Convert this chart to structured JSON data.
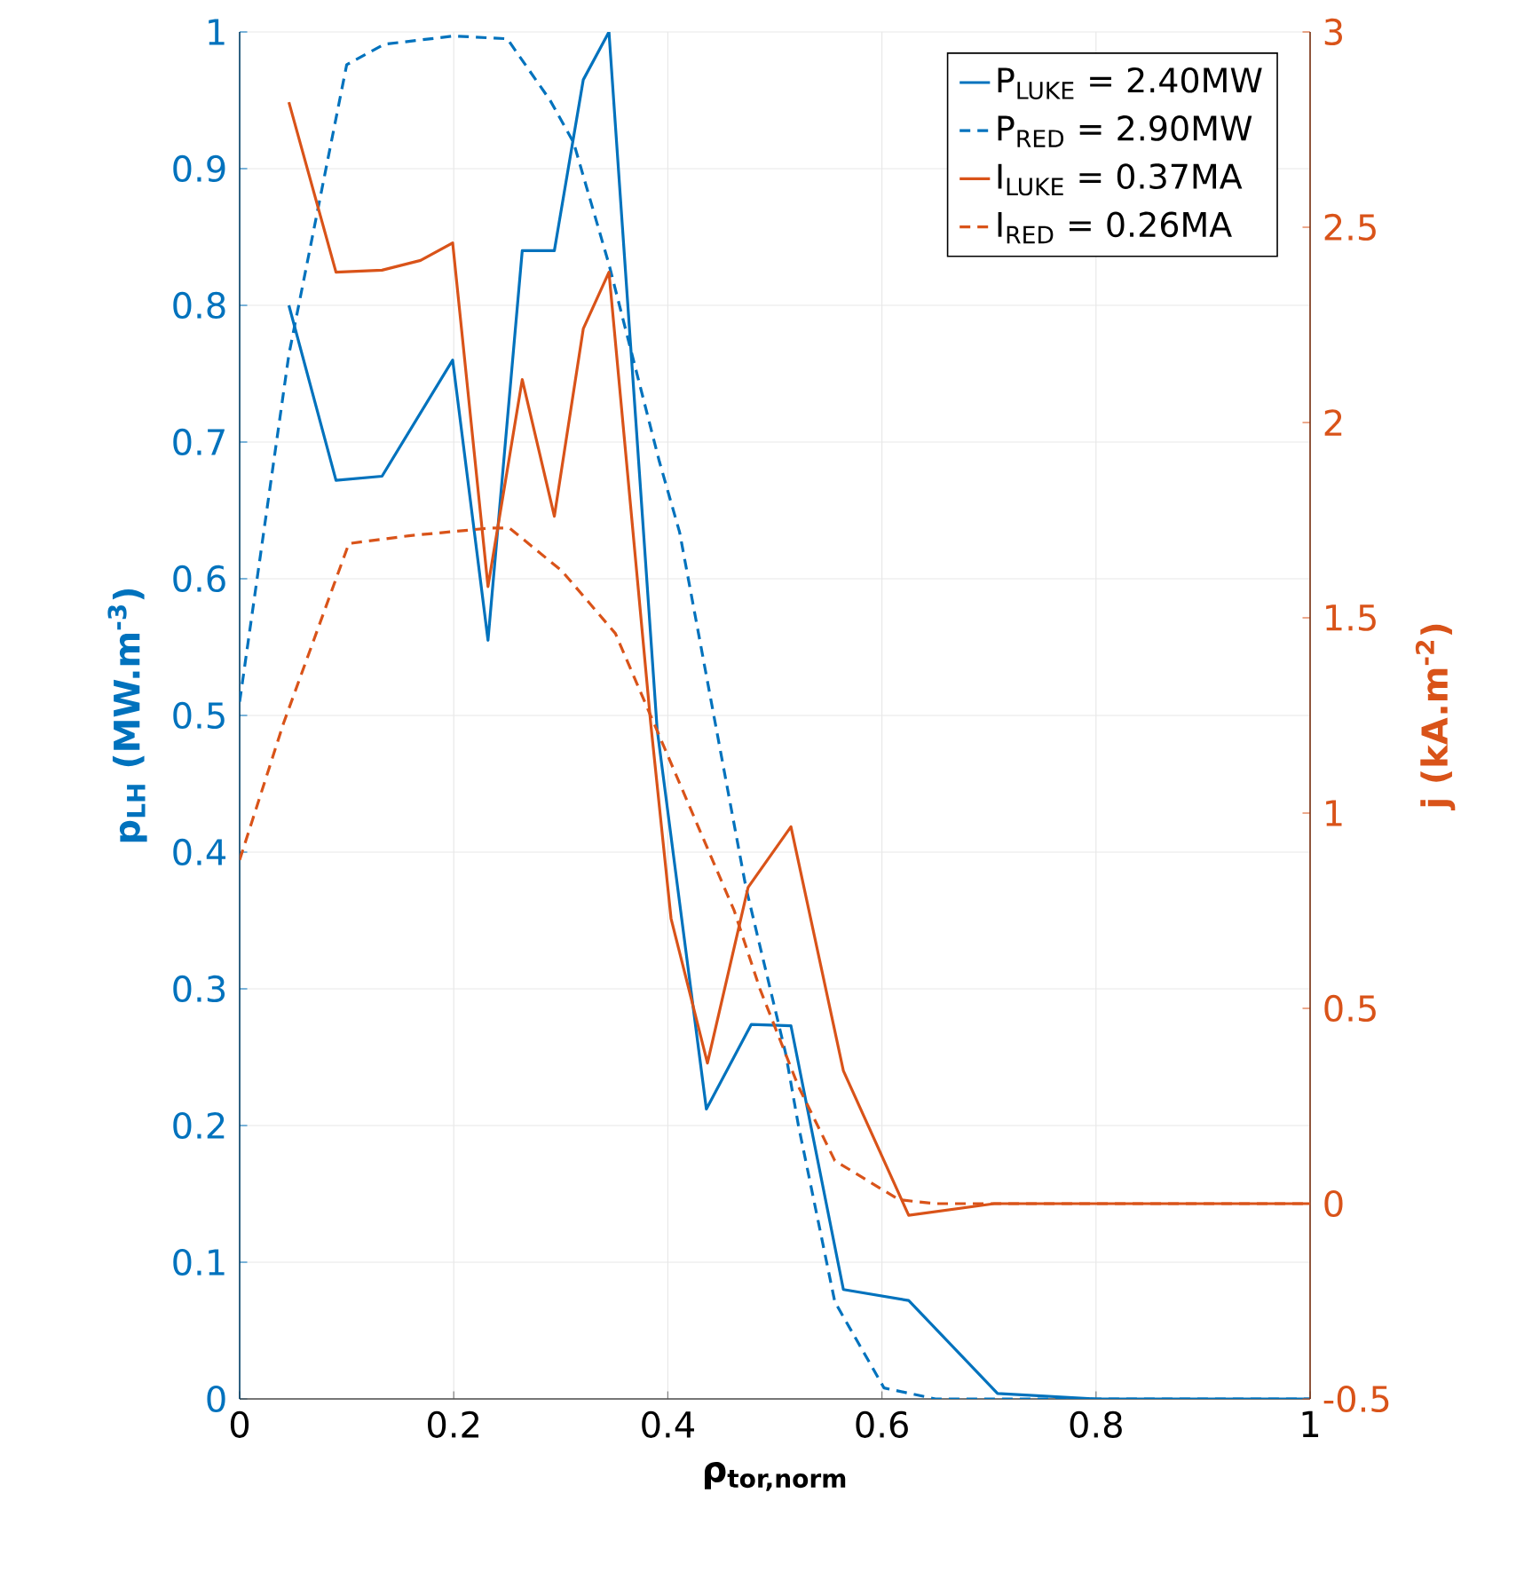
{
  "chart_data": {
    "type": "line",
    "xlabel": "ρ$_{tor,norm}$",
    "ylabel": "p$_{LH}$ (MW.m$^{-3}$)",
    "y2label": "j (kA.m$^{-2}$)",
    "xlim": [
      0,
      1
    ],
    "xticks": [
      0,
      0.2,
      0.4,
      0.6,
      0.8,
      1
    ],
    "ylim": [
      0,
      1
    ],
    "yticks": [
      0,
      0.1,
      0.2,
      0.3,
      0.4,
      0.5,
      0.6,
      0.7,
      0.8,
      0.9,
      1
    ],
    "y2lim": [
      -0.5,
      3
    ],
    "y2ticks": [
      -0.5,
      0,
      0.5,
      1,
      1.5,
      2,
      2.5,
      3
    ],
    "grid": true,
    "legend": "top right",
    "series": [
      {
        "name": "P$_{LUKE}$ = 2.40MW",
        "color": "#0072bd",
        "line_style": "solid",
        "x": [
          0.046,
          0.09,
          0.133,
          0.199,
          0.232,
          0.264,
          0.294,
          0.321,
          0.345,
          0.39,
          0.436,
          0.478,
          0.515,
          0.564,
          0.625,
          0.708,
          0.8,
          1.0
        ],
        "values": [
          0.8,
          0.672,
          0.675,
          0.76,
          0.555,
          0.84,
          0.84,
          0.965,
          1.0,
          0.49,
          0.212,
          0.274,
          0.273,
          0.08,
          0.072,
          0.004,
          0.0,
          0.0
        ]
      },
      {
        "name": "P$_{RED}$ = 2.90MW",
        "color": "#0072bd",
        "line_style": "dashed",
        "x": [
          0,
          0.046,
          0.1,
          0.135,
          0.2,
          0.25,
          0.29,
          0.312,
          0.345,
          0.392,
          0.411,
          0.473,
          0.51,
          0.522,
          0.556,
          0.602,
          0.65,
          1.0
        ],
        "values": [
          0.51,
          0.764,
          0.976,
          0.991,
          0.997,
          0.995,
          0.95,
          0.919,
          0.83,
          0.686,
          0.634,
          0.374,
          0.253,
          0.2,
          0.071,
          0.008,
          0.0,
          0.0
        ]
      },
      {
        "name": "I$_{LUKE}$ = 0.37MA",
        "color": "#d95319",
        "line_style": "solid",
        "axis": "y2",
        "x": [
          0.046,
          0.09,
          0.133,
          0.169,
          0.199,
          0.232,
          0.264,
          0.294,
          0.321,
          0.345,
          0.384,
          0.403,
          0.437,
          0.475,
          0.515,
          0.564,
          0.625,
          0.705,
          1.0
        ],
        "values": [
          2.82,
          2.385,
          2.39,
          2.415,
          2.46,
          1.58,
          2.11,
          1.76,
          2.24,
          2.385,
          1.23,
          0.73,
          0.36,
          0.81,
          0.965,
          0.34,
          -0.03,
          0.0,
          0.0
        ]
      },
      {
        "name": "I$_{RED}$ = 0.26MA",
        "color": "#d95319",
        "line_style": "dashed",
        "axis": "y2",
        "x": [
          0,
          0.041,
          0.102,
          0.158,
          0.235,
          0.252,
          0.301,
          0.351,
          0.387,
          0.462,
          0.486,
          0.522,
          0.556,
          0.616,
          0.65,
          1.0
        ],
        "values": [
          0.88,
          1.23,
          1.69,
          1.71,
          1.73,
          1.73,
          1.62,
          1.46,
          1.23,
          0.75,
          0.55,
          0.3,
          0.11,
          0.01,
          0.0,
          0.0
        ]
      }
    ]
  }
}
